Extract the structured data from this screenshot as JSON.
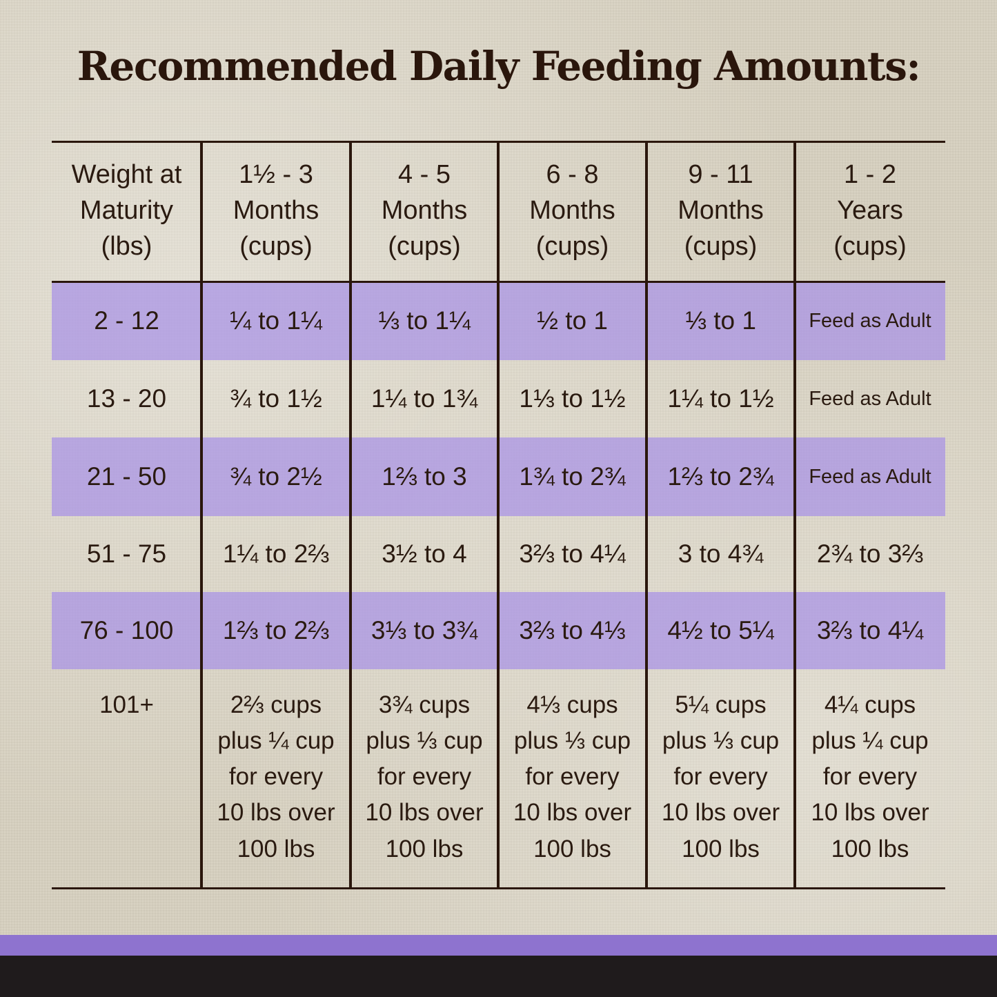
{
  "title": "Recommended Daily Feeding Amounts:",
  "colors": {
    "text": "#2a160c",
    "band_purple": "#a892e6",
    "footer_purple": "#8e73cf",
    "footer_black": "#1f1b1c"
  },
  "table": {
    "headers": [
      "Weight at\nMaturity\n(lbs)",
      "1½ - 3\nMonths\n(cups)",
      "4 - 5\nMonths\n(cups)",
      "6 - 8\nMonths\n(cups)",
      "9 - 11\nMonths\n(cups)",
      "1 - 2\nYears\n(cups)"
    ],
    "rows": [
      [
        "2 - 12",
        "¼ to 1¼",
        "⅓ to 1¼",
        "½ to 1",
        "⅓ to 1",
        "Feed as Adult"
      ],
      [
        "13 - 20",
        "¾ to 1½",
        "1¼ to 1¾",
        "1⅓ to 1½",
        "1¼ to 1½",
        "Feed as Adult"
      ],
      [
        "21 - 50",
        "¾ to 2½",
        "1⅔ to 3",
        "1¾ to 2¾",
        "1⅔ to 2¾",
        "Feed as Adult"
      ],
      [
        "51 - 75",
        "1¼ to 2⅔",
        "3½ to 4",
        "3⅔ to 4¼",
        "3 to 4¾",
        "2¾ to 3⅔"
      ],
      [
        "76 - 100",
        "1⅔ to 2⅔",
        "3⅓ to 3¾",
        "3⅔ to 4⅓",
        "4½ to 5¼",
        "3⅔ to 4¼"
      ],
      [
        "101+",
        "2⅔ cups\nplus ¼ cup\nfor every\n10 lbs over\n100 lbs",
        "3¾ cups\nplus ⅓ cup\nfor every\n10 lbs over\n100 lbs",
        "4⅓ cups\nplus ⅓ cup\nfor every\n10 lbs over\n100 lbs",
        "5¼ cups\nplus ⅓ cup\nfor every\n10 lbs over\n100 lbs",
        "4¼ cups\nplus ¼ cup\nfor every\n10 lbs over\n100 lbs"
      ]
    ]
  }
}
